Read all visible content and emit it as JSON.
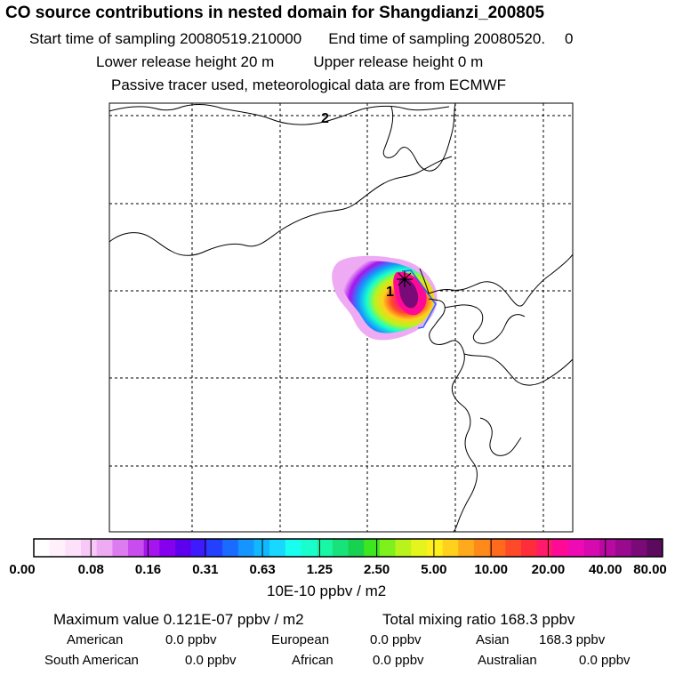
{
  "header": {
    "title": "CO  source contributions in nested domain for Shangdianzi_200805",
    "start_label": "Start time of sampling 20080519.210000",
    "end_label": "End time of sampling 20080520.",
    "end_trailing": "0",
    "lower_label": "Lower release height   20 m",
    "upper_label": "Upper release height    0 m",
    "passive_line": "Passive tracer used, meteorological data are from ECMWF"
  },
  "map": {
    "markers": [
      {
        "label": "1",
        "desc": "release site"
      },
      {
        "label": "2",
        "desc": "secondary label"
      }
    ]
  },
  "colorbar": {
    "tick_labels": [
      "0.00",
      "0.08",
      "0.16",
      "0.31",
      "0.63",
      "1.25",
      "2.50",
      "5.00",
      "10.00",
      "20.00",
      "40.00",
      "80.00"
    ],
    "units": "10E-10 ppbv / m2",
    "colors": [
      "#ffffff",
      "#fff0fb",
      "#fde0f9",
      "#f8c8f6",
      "#eeaaf2",
      "#dc7cf0",
      "#c94cee",
      "#a614ee",
      "#8400ee",
      "#5d00ee",
      "#3e1bff",
      "#2340ff",
      "#1a6bff",
      "#1495ff",
      "#10b9ff",
      "#18d8ff",
      "#18ffef",
      "#18ffcd",
      "#18f7a6",
      "#18e37a",
      "#19d150",
      "#3de61e",
      "#7ef01c",
      "#b8f41c",
      "#e4f41c",
      "#fff01c",
      "#ffd01c",
      "#ffaa1c",
      "#ff8a1c",
      "#ff6a1c",
      "#ff4a2a",
      "#ff2d3c",
      "#ff1a6a",
      "#ff0a96",
      "#f00ab4",
      "#d60aae",
      "#b80aa0",
      "#9a0a8e",
      "#7a0a78",
      "#5c0a5e"
    ]
  },
  "summary": {
    "max_value_label": "Maximum value  0.121E-07 ppbv / m2",
    "total_mixing_label": "Total mixing ratio      168.3 ppbv"
  },
  "regions": [
    {
      "name": "American",
      "value": "0.0 ppbv"
    },
    {
      "name": "European",
      "value": "0.0 ppbv"
    },
    {
      "name": "Asian",
      "value": "168.3 ppbv"
    },
    {
      "name": "South American",
      "value": "0.0 ppbv"
    },
    {
      "name": "African",
      "value": "0.0 ppbv"
    },
    {
      "name": "Australian",
      "value": "0.0 ppbv"
    }
  ]
}
